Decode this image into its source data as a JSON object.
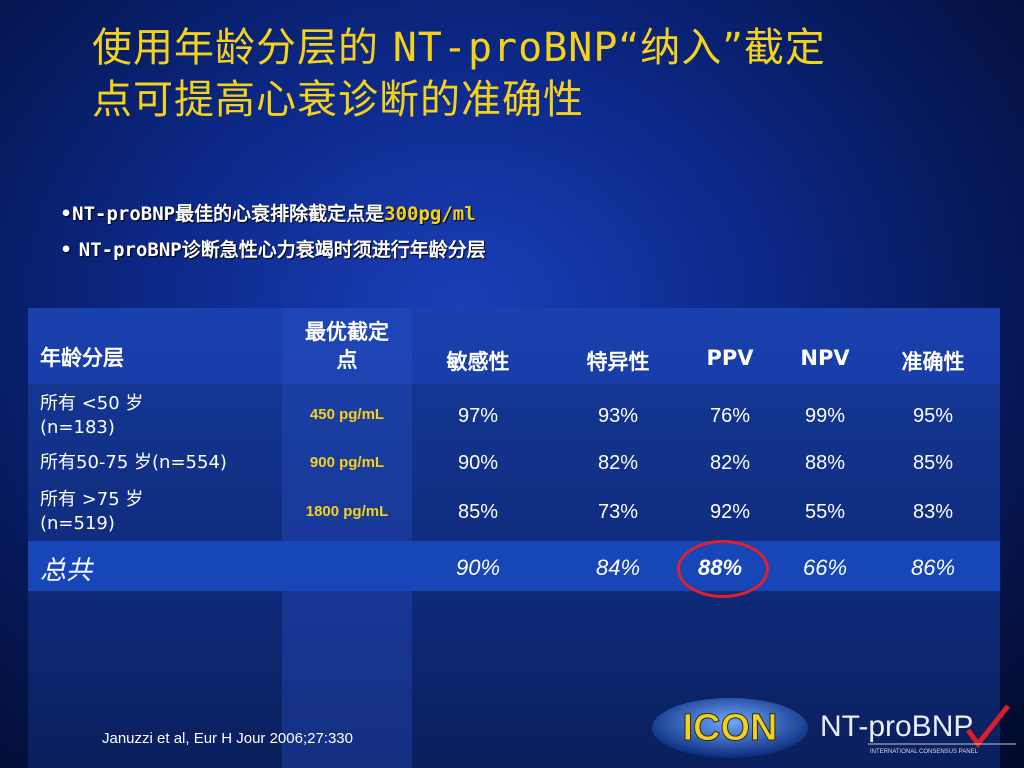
{
  "title": {
    "part1": "使用年龄分层的 ",
    "part2": "NT-proBNP",
    "part3": "“纳入”截定",
    "line2": "点可提高心衰诊断的准确性"
  },
  "bullets": [
    {
      "mark": "•",
      "mono": "NT-proBNP",
      "text": "最佳的心衰排除截定点是",
      "highlight": "300pg/ml"
    },
    {
      "mark": "• ",
      "mono": "NT-proBNP",
      "text": "诊断急性心力衰竭时须进行年龄分层",
      "highlight": ""
    }
  ],
  "table": {
    "headers": [
      "年龄分层",
      "最优截定\n点",
      "敏感性",
      "特异性",
      "PPV",
      "NPV",
      "准确性"
    ],
    "rows": [
      {
        "label_l1": "所有 <50 岁",
        "label_l2": "(n=183)",
        "cutoff": "450 pg/mL",
        "values": [
          "97%",
          "93%",
          "76%",
          "99%",
          "95%"
        ]
      },
      {
        "label_l1": "所有50-75 岁(n=554)",
        "label_l2": "",
        "cutoff": "900 pg/mL",
        "values": [
          "90%",
          "82%",
          "82%",
          "88%",
          "85%"
        ]
      },
      {
        "label_l1": "所有 >75 岁",
        "label_l2": "(n=519)",
        "cutoff": "1800 pg/mL",
        "values": [
          "85%",
          "73%",
          "92%",
          "55%",
          "83%"
        ]
      }
    ],
    "total": {
      "label": "总共",
      "values": [
        "90%",
        "84%",
        "88%",
        "66%",
        "86%"
      ]
    }
  },
  "reference": "Januzzi et al, Eur H Jour 2006;27:330",
  "logos": {
    "icon_text": "ICON",
    "nt_text": "NT-proBNP",
    "nt_sub": "INTERNATIONAL CONSENSUS PANEL"
  },
  "colors": {
    "title": "#f5d21a",
    "highlight_circle": "#e0202a",
    "total_band": "#1646b8"
  }
}
